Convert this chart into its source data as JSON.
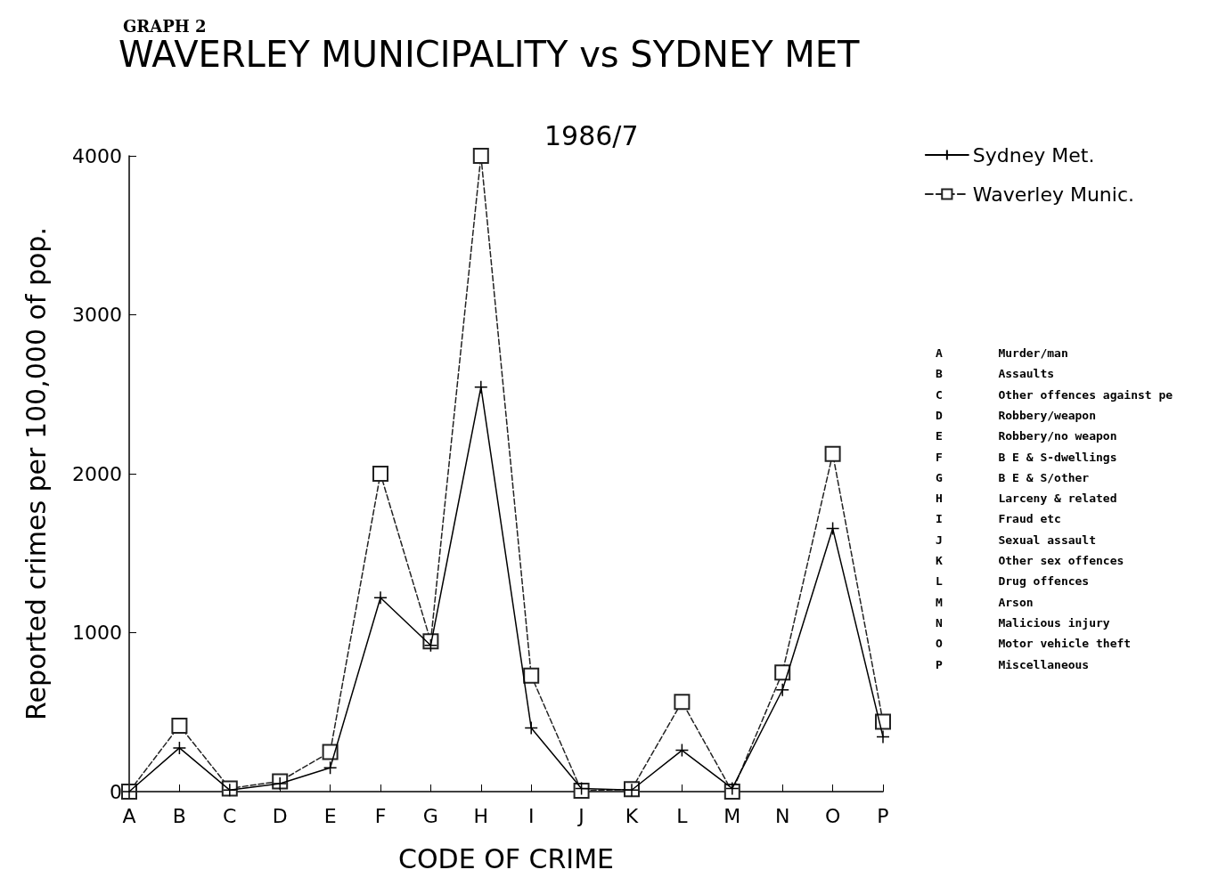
{
  "chart_data": {
    "type": "line",
    "title": "WAVERLEY MUNICIPALITY vs SYDNEY MET",
    "subtitle": "1986/7",
    "xlabel": "CODE OF CRIME",
    "ylabel": "Reported crimes per 100,000 of pop.",
    "categories": [
      "A",
      "B",
      "C",
      "D",
      "E",
      "F",
      "G",
      "H",
      "I",
      "J",
      "K",
      "L",
      "M",
      "N",
      "O",
      "P"
    ],
    "series": [
      {
        "name": "Sydney Met.",
        "color": "#000000",
        "marker": "cross",
        "line_style": "solid",
        "values": [
          0,
          275,
          10,
          50,
          150,
          1220,
          920,
          2545,
          400,
          20,
          10,
          260,
          20,
          640,
          1655,
          345
        ]
      },
      {
        "name": "Waverley Munic.",
        "color": "#222222",
        "marker": "square",
        "line_style": "dashed",
        "values": [
          0,
          415,
          20,
          65,
          250,
          2000,
          945,
          4000,
          730,
          5,
          15,
          565,
          0,
          750,
          2125,
          440
        ]
      }
    ],
    "ylim": [
      0,
      4000
    ],
    "yticks": [
      0,
      1000,
      2000,
      3000,
      4000
    ],
    "grid": false,
    "legend": "top right",
    "annotations": [
      "GRAPH 2",
      "A        Murder/man",
      "B        Assaults",
      "C        Other offences against pe",
      "D        Robbery/weapon",
      "E        Robbery/no weapon",
      "F        B E & S-dwellings",
      "G        B E & S/other",
      "H        Larceny & related",
      "I        Fraud etc",
      "J        Sexual assault",
      "K        Other sex offences",
      "L        Drug offences",
      "M        Arson",
      "N        Malicious injury",
      "O        Motor vehicle theft",
      "P        Miscellaneous"
    ]
  }
}
